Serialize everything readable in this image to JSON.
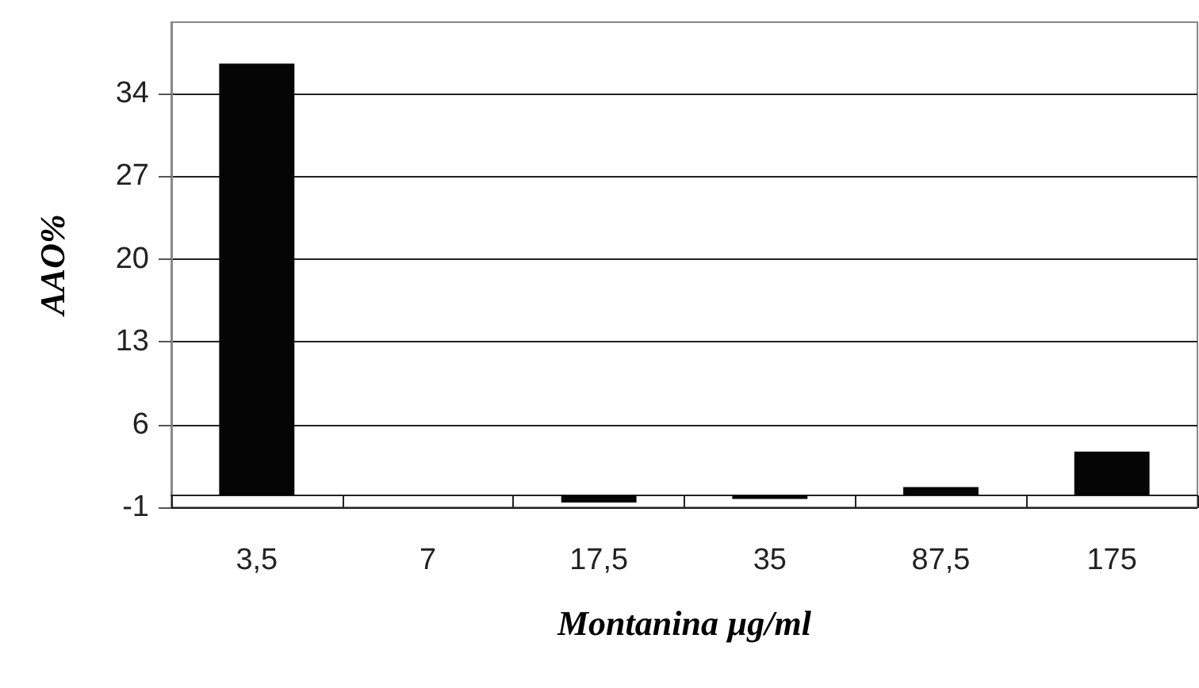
{
  "chart_data": {
    "type": "bar",
    "xlabel": "Montanina µg/ml",
    "ylabel": "AAO%",
    "categories": [
      "3,5",
      "7",
      "17,5",
      "35",
      "87,5",
      "175"
    ],
    "values": [
      36.5,
      0,
      -0.6,
      -0.3,
      0.7,
      3.7
    ],
    "color": "#050505",
    "ylim": [
      -1,
      40
    ],
    "yticks": [
      -1,
      6,
      13,
      20,
      27,
      34
    ],
    "grid": "y"
  }
}
